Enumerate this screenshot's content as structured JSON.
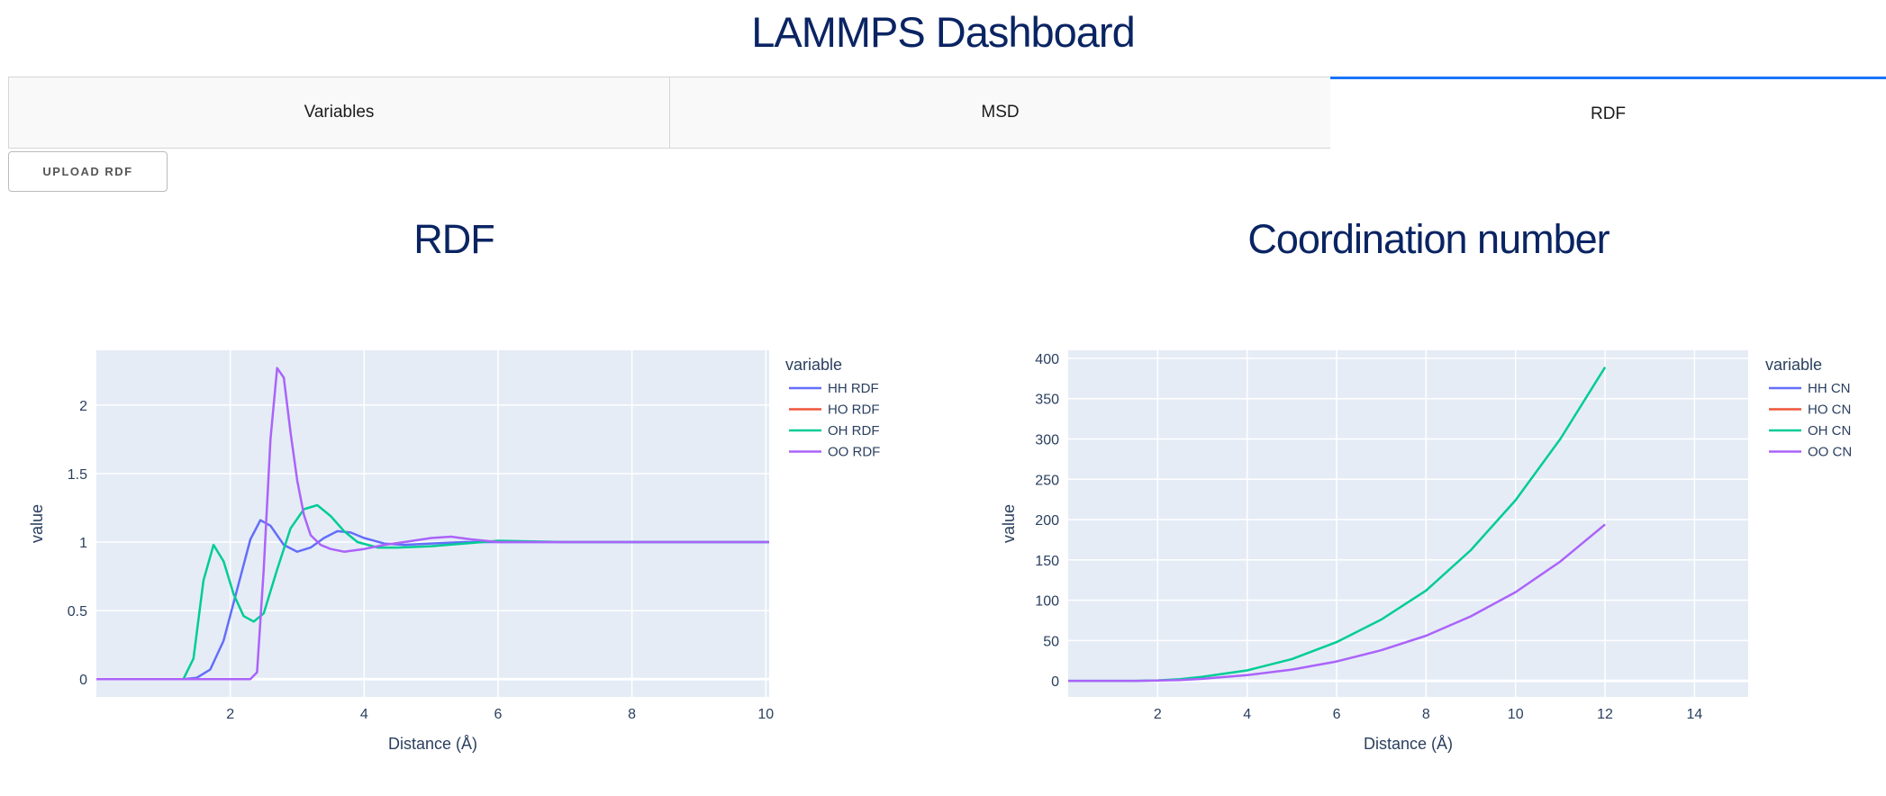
{
  "app": {
    "title": "LAMMPS Dashboard"
  },
  "tabs": [
    {
      "label": "Variables",
      "active": false
    },
    {
      "label": "MSD",
      "active": false
    },
    {
      "label": "RDF",
      "active": true
    }
  ],
  "upload_button": {
    "label": "UPLOAD RDF"
  },
  "colors": {
    "title": "#0a2463",
    "plot_bg": "#e5ecf6",
    "active_tab_border": "#1975fa",
    "HH": "#636efa",
    "HO": "#ef553b",
    "OH": "#00cc96",
    "OO": "#ab63fa"
  },
  "chart_data": [
    {
      "type": "line",
      "title": "RDF",
      "xlabel": "Distance (Å)",
      "ylabel": "value",
      "xlim": [
        0,
        10.05
      ],
      "ylim": [
        -0.13,
        2.4
      ],
      "xticks": [
        2,
        4,
        6,
        8,
        10
      ],
      "yticks": [
        0,
        0.5,
        1,
        1.5,
        2
      ],
      "ytick_labels": [
        "0",
        "0.5",
        "1",
        "1.5",
        "2"
      ],
      "grid": true,
      "legend": {
        "title": "variable",
        "placement": "right"
      },
      "series": [
        {
          "name": "HH RDF",
          "color": "#636efa",
          "x": [
            0,
            1.3,
            1.5,
            1.7,
            1.9,
            2.1,
            2.3,
            2.45,
            2.6,
            2.8,
            3.0,
            3.2,
            3.4,
            3.6,
            3.8,
            4.0,
            4.3,
            4.6,
            5.0,
            5.5,
            6.0,
            7.0,
            8.0,
            9.0,
            10.05
          ],
          "y": [
            0,
            0,
            0.01,
            0.07,
            0.28,
            0.65,
            1.02,
            1.16,
            1.12,
            0.98,
            0.93,
            0.96,
            1.03,
            1.08,
            1.07,
            1.03,
            0.99,
            0.98,
            0.99,
            1.0,
            1.0,
            1.0,
            1.0,
            1.0,
            1.0
          ]
        },
        {
          "name": "HO RDF",
          "color": "#ef553b",
          "x": [],
          "y": []
        },
        {
          "name": "OH RDF",
          "color": "#00cc96",
          "x": [
            0,
            1.3,
            1.45,
            1.6,
            1.75,
            1.9,
            2.05,
            2.2,
            2.35,
            2.5,
            2.7,
            2.9,
            3.1,
            3.3,
            3.5,
            3.7,
            3.9,
            4.2,
            4.5,
            5.0,
            5.5,
            6.0,
            7.0,
            8.0,
            9.0,
            10.05
          ],
          "y": [
            0,
            0,
            0.15,
            0.72,
            0.98,
            0.86,
            0.62,
            0.46,
            0.42,
            0.48,
            0.8,
            1.1,
            1.24,
            1.27,
            1.19,
            1.08,
            1.0,
            0.96,
            0.96,
            0.97,
            0.99,
            1.01,
            1.0,
            1.0,
            1.0,
            1.0
          ]
        },
        {
          "name": "OO RDF",
          "color": "#ab63fa",
          "x": [
            0,
            2.3,
            2.4,
            2.5,
            2.6,
            2.7,
            2.8,
            2.9,
            3.0,
            3.1,
            3.2,
            3.35,
            3.5,
            3.7,
            4.0,
            4.3,
            4.6,
            5.0,
            5.3,
            5.6,
            6.0,
            7.0,
            8.0,
            9.0,
            10.05
          ],
          "y": [
            0,
            0,
            0.05,
            0.8,
            1.75,
            2.27,
            2.2,
            1.8,
            1.45,
            1.2,
            1.05,
            0.98,
            0.95,
            0.93,
            0.95,
            0.98,
            1.0,
            1.03,
            1.04,
            1.02,
            1.0,
            1.0,
            1.0,
            1.0,
            1.0
          ]
        }
      ]
    },
    {
      "type": "line",
      "title": "Coordination number",
      "xlabel": "Distance (Å)",
      "ylabel": "value",
      "xlim": [
        0,
        15.2
      ],
      "ylim": [
        -20,
        410
      ],
      "xticks": [
        2,
        4,
        6,
        8,
        10,
        12,
        14
      ],
      "yticks": [
        0,
        50,
        100,
        150,
        200,
        250,
        300,
        350,
        400
      ],
      "ytick_labels": [
        "0",
        "50",
        "100",
        "150",
        "200",
        "250",
        "300",
        "350",
        "400"
      ],
      "grid": true,
      "legend": {
        "title": "variable",
        "placement": "right"
      },
      "series": [
        {
          "name": "HH CN",
          "color": "#636efa",
          "x": [],
          "y": []
        },
        {
          "name": "HO CN",
          "color": "#ef553b",
          "x": [],
          "y": []
        },
        {
          "name": "OH CN",
          "color": "#00cc96",
          "x": [
            0,
            1.5,
            2,
            2.5,
            3,
            4,
            5,
            6,
            7,
            8,
            9,
            10,
            11,
            12
          ],
          "y": [
            0,
            0,
            0.5,
            2,
            5,
            13,
            27,
            48,
            76,
            112,
            162,
            224,
            300,
            389
          ]
        },
        {
          "name": "OO CN",
          "color": "#ab63fa",
          "x": [
            0,
            1.5,
            2,
            2.5,
            3,
            4,
            5,
            6,
            7,
            8,
            9,
            10,
            11,
            12
          ],
          "y": [
            0,
            0,
            0.3,
            1,
            2.5,
            7,
            14,
            24,
            38,
            56,
            80,
            110,
            148,
            194
          ]
        }
      ]
    }
  ]
}
